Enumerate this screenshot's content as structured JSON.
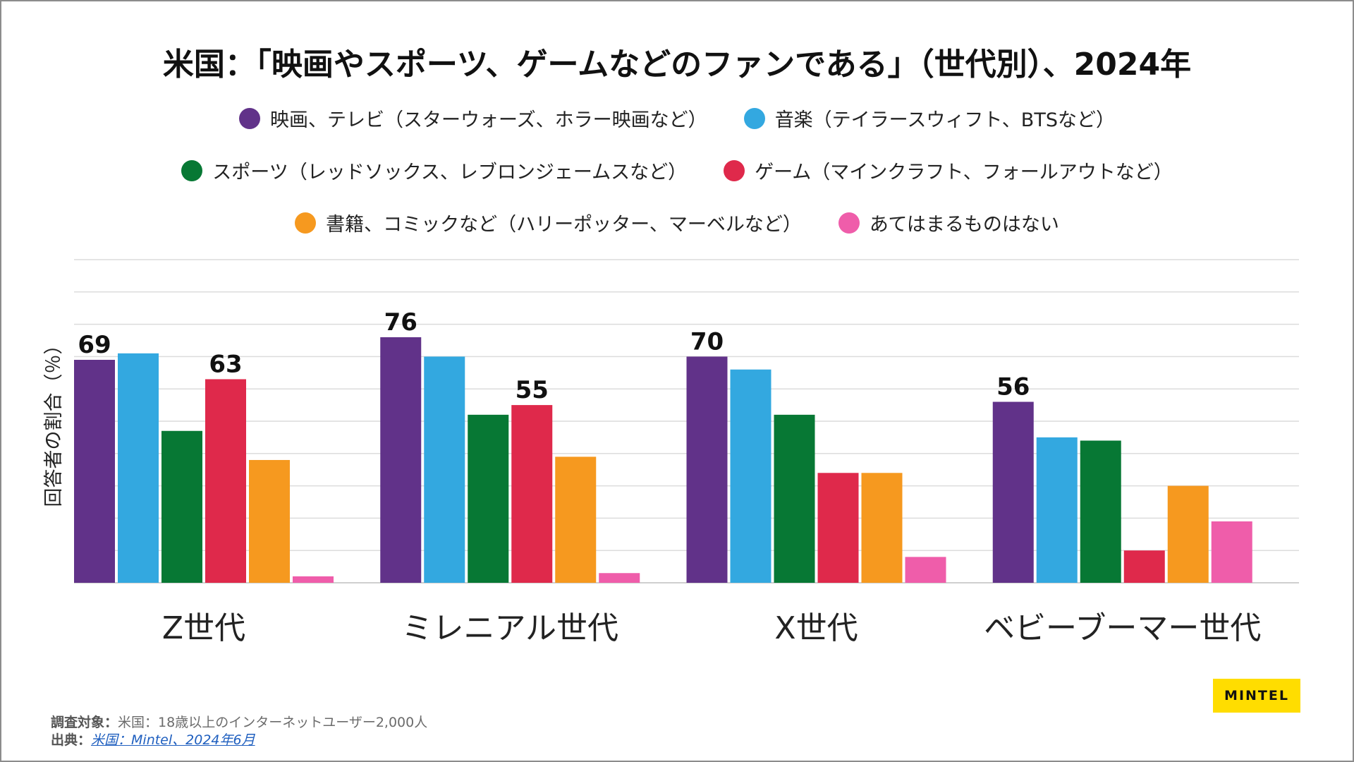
{
  "title": "米国：「映画やスポーツ、ゲームなどのファンである」（世代別）、2024年",
  "legend": [
    {
      "label": "映画、テレビ（スターウォーズ、ホラー映画など）",
      "color": "#613289"
    },
    {
      "label": "音楽（テイラースウィフト、BTSなど）",
      "color": "#33a8e0"
    },
    {
      "label": "スポーツ（レッドソックス、レブロンジェームスなど）",
      "color": "#077834"
    },
    {
      "label": "ゲーム（マインクラフト、フォールアウトなど）",
      "color": "#df294b"
    },
    {
      "label": "書籍、コミックなど（ハリーポッター、マーベルなど）",
      "color": "#f6991f"
    },
    {
      "label": "あてはまるものはない",
      "color": "#ef5daa"
    }
  ],
  "chart_data": {
    "type": "bar",
    "ylabel": "回答者の割合（％）",
    "ylim": [
      0,
      100
    ],
    "grid": true,
    "categories": [
      "Z世代",
      "ミレニアル世代",
      "X世代",
      "ベビーブーマー世代"
    ],
    "series": [
      {
        "name": "映画、テレビ（スターウォーズ、ホラー映画など）",
        "color": "#613289",
        "values": [
          69,
          76,
          70,
          56
        ]
      },
      {
        "name": "音楽（テイラースウィフト、BTSなど）",
        "color": "#33a8e0",
        "values": [
          71,
          70,
          66,
          45
        ]
      },
      {
        "name": "スポーツ（レッドソックス、レブロンジェームスなど）",
        "color": "#077834",
        "values": [
          47,
          52,
          52,
          44
        ]
      },
      {
        "name": "ゲーム（マインクラフト、フォールアウトなど）",
        "color": "#df294b",
        "values": [
          63,
          55,
          34,
          10
        ]
      },
      {
        "name": "書籍、コミックなど（ハリーポッター、マーベルなど）",
        "color": "#f6991f",
        "values": [
          38,
          39,
          34,
          30
        ]
      },
      {
        "name": "あてはまるものはない",
        "color": "#ef5daa",
        "values": [
          2,
          3,
          8,
          19
        ]
      }
    ],
    "data_labels": [
      {
        "series": 0,
        "category": 0,
        "text": "69"
      },
      {
        "series": 3,
        "category": 0,
        "text": "63"
      },
      {
        "series": 0,
        "category": 1,
        "text": "76"
      },
      {
        "series": 3,
        "category": 1,
        "text": "55"
      },
      {
        "series": 0,
        "category": 2,
        "text": "70"
      },
      {
        "series": 0,
        "category": 3,
        "text": "56"
      }
    ]
  },
  "source": {
    "target_label": "調査対象：",
    "target_text": "米国：18歳以上のインターネットユーザー2,000人",
    "origin_label": "出典：",
    "origin_link": "米国：Mintel、2024年6月"
  },
  "logo": "MINTEL"
}
